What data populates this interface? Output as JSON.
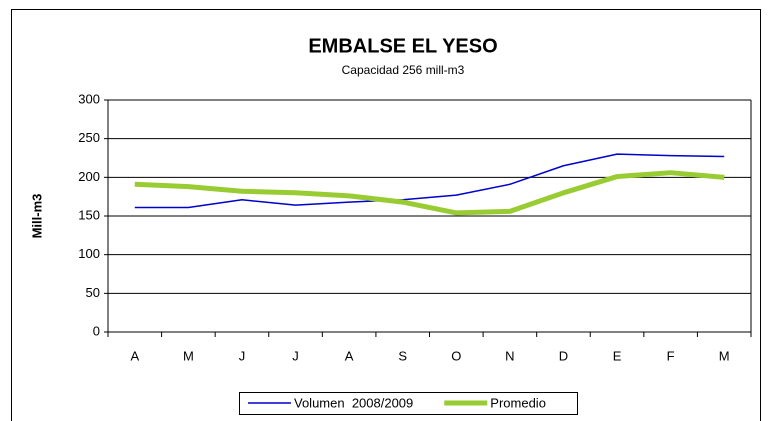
{
  "chart_data": {
    "type": "line",
    "title": "EMBALSE EL YESO",
    "subtitle": "Capacidad 256 mill-m3",
    "y_label": "Mill-m3",
    "categories": [
      "A",
      "M",
      "J",
      "J",
      "A",
      "S",
      "O",
      "N",
      "D",
      "E",
      "F",
      "M"
    ],
    "series": [
      {
        "name": "Volumen  2008/2009",
        "color": "#0000cc",
        "width": 1.5,
        "values": [
          161,
          161,
          171,
          164,
          168,
          171,
          177,
          191,
          215,
          230,
          228,
          227
        ]
      },
      {
        "name": "Promedio",
        "color": "#99cc33",
        "width": 5,
        "values": [
          191,
          188,
          182,
          180,
          176,
          168,
          154,
          156,
          180,
          201,
          206,
          200
        ]
      }
    ],
    "ylim": [
      0,
      300
    ],
    "yticks": [
      0,
      50,
      100,
      150,
      200,
      250,
      300
    ],
    "grid": true,
    "legend": "bottom"
  }
}
